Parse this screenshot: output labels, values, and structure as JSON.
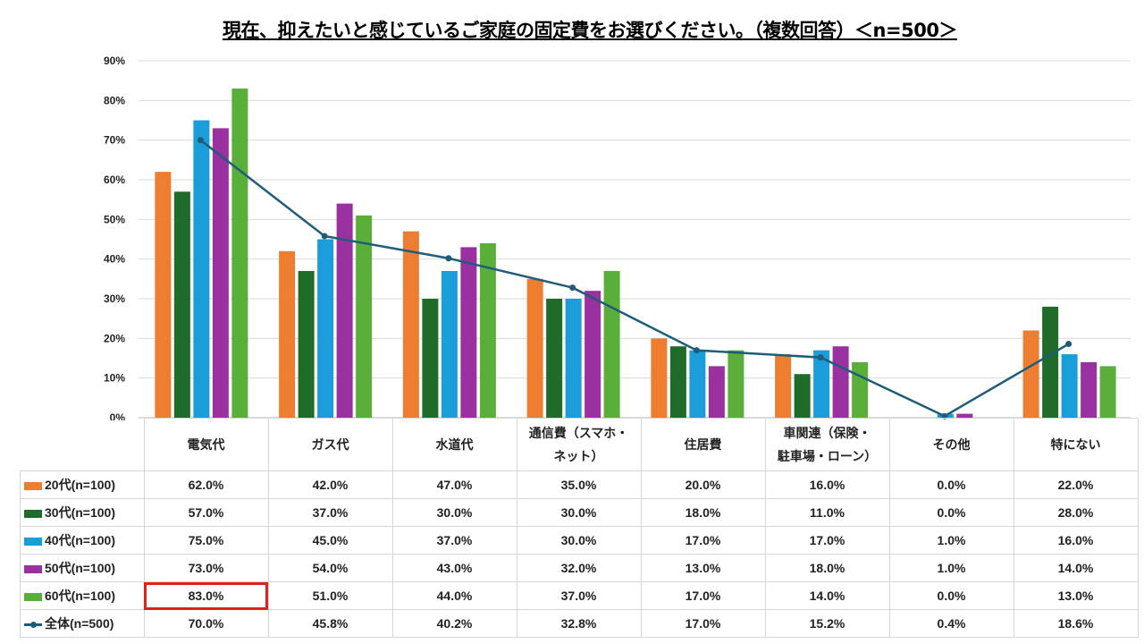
{
  "chart_data": {
    "type": "bar",
    "title": "現在、抑えたいと感じているご家庭の固定費をお選びください。（複数回答）＜n=500＞",
    "categories": [
      "電気代",
      "ガス代",
      "水道代",
      "通信費（スマホ・ネット）",
      "住居費",
      "車関連（保険・駐車場・ローン）",
      "その他",
      "特にない"
    ],
    "category_lines": [
      [
        "電気代"
      ],
      [
        "ガス代"
      ],
      [
        "水道代"
      ],
      [
        "通信費（スマホ・",
        "ネット）"
      ],
      [
        "住居費"
      ],
      [
        "車関連（保険・",
        "駐車場・ローン）"
      ],
      [
        "その他"
      ],
      [
        "特にない"
      ]
    ],
    "ylim": [
      0,
      90
    ],
    "yticks": [
      "0%",
      "10%",
      "20%",
      "30%",
      "40%",
      "50%",
      "60%",
      "70%",
      "80%",
      "90%"
    ],
    "grid": true,
    "legend": "data-table-left",
    "series": [
      {
        "name": "20代(n=100)",
        "type": "bar",
        "color": "#ED7D31",
        "values": [
          62.0,
          42.0,
          47.0,
          35.0,
          20.0,
          16.0,
          0.0,
          22.0
        ],
        "labels": [
          "62.0%",
          "42.0%",
          "47.0%",
          "35.0%",
          "20.0%",
          "16.0%",
          "0.0%",
          "22.0%"
        ]
      },
      {
        "name": "30代(n=100)",
        "type": "bar",
        "color": "#1E6B2A",
        "values": [
          57.0,
          37.0,
          30.0,
          30.0,
          18.0,
          11.0,
          0.0,
          28.0
        ],
        "labels": [
          "57.0%",
          "37.0%",
          "30.0%",
          "30.0%",
          "18.0%",
          "11.0%",
          "0.0%",
          "28.0%"
        ]
      },
      {
        "name": "40代(n=100)",
        "type": "bar",
        "color": "#1A9DD9",
        "values": [
          75.0,
          45.0,
          37.0,
          30.0,
          17.0,
          17.0,
          1.0,
          16.0
        ],
        "labels": [
          "75.0%",
          "45.0%",
          "37.0%",
          "30.0%",
          "17.0%",
          "17.0%",
          "1.0%",
          "16.0%"
        ]
      },
      {
        "name": "50代(n=100)",
        "type": "bar",
        "color": "#9B30A0",
        "values": [
          73.0,
          54.0,
          43.0,
          32.0,
          13.0,
          18.0,
          1.0,
          14.0
        ],
        "labels": [
          "73.0%",
          "54.0%",
          "43.0%",
          "32.0%",
          "13.0%",
          "18.0%",
          "1.0%",
          "14.0%"
        ]
      },
      {
        "name": "60代(n=100)",
        "type": "bar",
        "color": "#5AAE3A",
        "values": [
          83.0,
          51.0,
          44.0,
          37.0,
          17.0,
          14.0,
          0.0,
          13.0
        ],
        "labels": [
          "83.0%",
          "51.0%",
          "44.0%",
          "37.0%",
          "17.0%",
          "14.0%",
          "0.0%",
          "13.0%"
        ]
      },
      {
        "name": "全体(n=500)",
        "type": "line",
        "color": "#1F5C7A",
        "values": [
          70.0,
          45.8,
          40.2,
          32.8,
          17.0,
          15.2,
          0.4,
          18.6
        ],
        "labels": [
          "70.0%",
          "45.8%",
          "40.2%",
          "32.8%",
          "17.0%",
          "15.2%",
          "0.4%",
          "18.6%"
        ]
      }
    ],
    "highlight": {
      "series": "60代(n=100)",
      "category": "電気代",
      "color": "#E0201F"
    }
  }
}
